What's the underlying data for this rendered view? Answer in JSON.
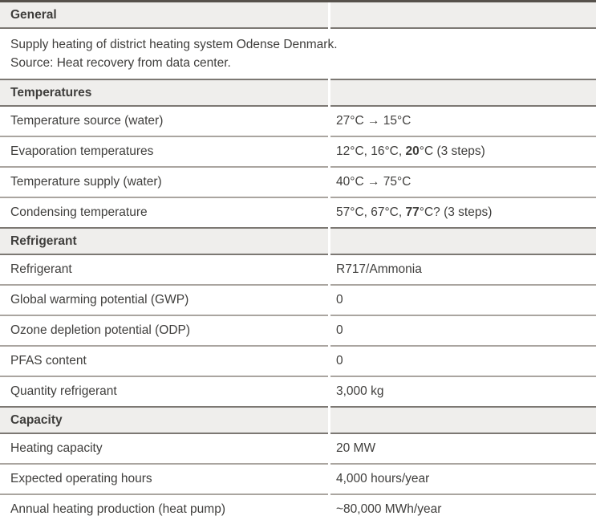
{
  "table": {
    "name": "heat-pump-specification-table",
    "sections": [
      {
        "id": "general",
        "header": "General",
        "description_lines": [
          "Supply heating of district heating system Odense Denmark.",
          "Source: Heat recovery from data center."
        ],
        "rows": []
      },
      {
        "id": "temperatures",
        "header": "Temperatures",
        "rows": [
          {
            "label": "Temperature source (water)",
            "value_parts": [
              {
                "text": "27°C → 15°C"
              }
            ]
          },
          {
            "label": "Evaporation temperatures",
            "value_parts": [
              {
                "text": "12°C, 16°C, "
              },
              {
                "text": "20",
                "bold": true
              },
              {
                "text": "°C (3 steps)"
              }
            ]
          },
          {
            "label": "Temperature supply (water)",
            "value_parts": [
              {
                "text": "40°C → 75°C"
              }
            ]
          },
          {
            "label": "Condensing temperature",
            "value_parts": [
              {
                "text": "57°C, 67°C, "
              },
              {
                "text": "77",
                "bold": true
              },
              {
                "text": "°C? (3 steps)"
              }
            ]
          }
        ]
      },
      {
        "id": "refrigerant",
        "header": "Refrigerant",
        "rows": [
          {
            "label": "Refrigerant",
            "value_parts": [
              {
                "text": "R717/Ammonia"
              }
            ]
          },
          {
            "label": "Global warming potential (GWP)",
            "value_parts": [
              {
                "text": "0"
              }
            ]
          },
          {
            "label": "Ozone depletion potential (ODP)",
            "value_parts": [
              {
                "text": "0"
              }
            ]
          },
          {
            "label": "PFAS content",
            "value_parts": [
              {
                "text": "0"
              }
            ]
          },
          {
            "label": "Quantity refrigerant",
            "value_parts": [
              {
                "text": "3,000 kg"
              }
            ]
          }
        ]
      },
      {
        "id": "capacity",
        "header": "Capacity",
        "rows": [
          {
            "label": "Heating capacity",
            "value_parts": [
              {
                "text": "20 MW"
              }
            ]
          },
          {
            "label": "Expected operating hours",
            "value_parts": [
              {
                "text": "4,000 hours/year"
              }
            ]
          },
          {
            "label": "Annual heating production (heat pump)",
            "value_parts": [
              {
                "text": "~80,000 MWh/year"
              }
            ]
          }
        ]
      }
    ]
  },
  "colors": {
    "header_background": "#efeeec",
    "table_top_border": "#56514b",
    "section_border": "#7c7873",
    "row_border": "#aaa5a0",
    "text": "#3f3e3c"
  }
}
